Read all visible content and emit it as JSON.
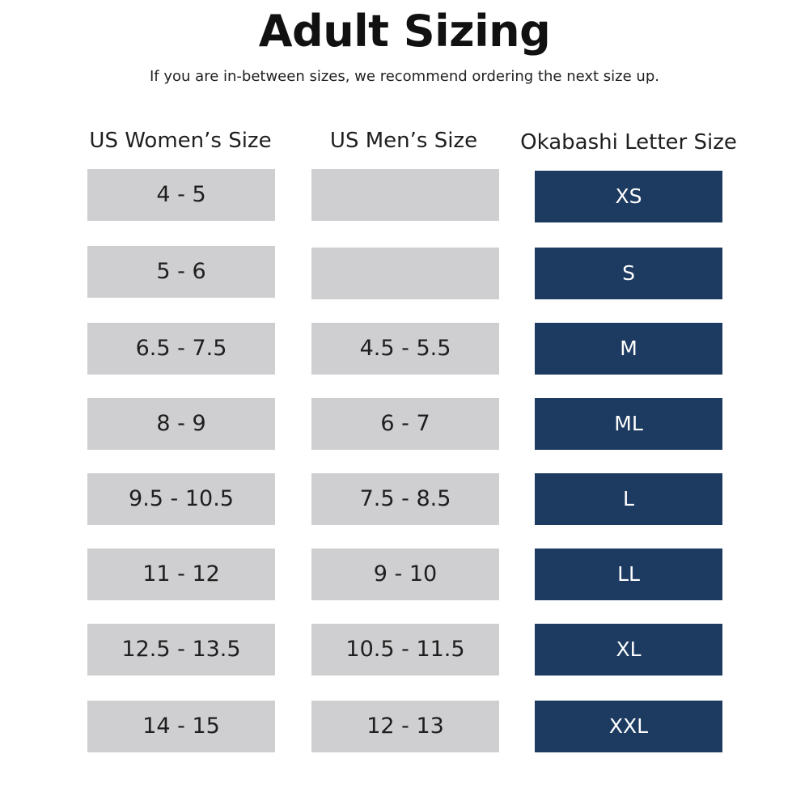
{
  "title": "Adult Sizing",
  "subtitle": "If you are in-between sizes, we recommend ordering the next size up.",
  "headers": {
    "women": "US Women’s Size",
    "men": "US Men’s Size",
    "letter": "Okabashi Letter Size"
  },
  "rows": [
    {
      "women": "4 - 5",
      "men": "",
      "letter": "XS"
    },
    {
      "women": "5 - 6",
      "men": "",
      "letter": "S"
    },
    {
      "women": "6.5 - 7.5",
      "men": "4.5 - 5.5",
      "letter": "M"
    },
    {
      "women": "8 - 9",
      "men": "6 - 7",
      "letter": "ML"
    },
    {
      "women": "9.5 - 10.5",
      "men": "7.5 - 8.5",
      "letter": "L"
    },
    {
      "women": "11 - 12",
      "men": "9 - 10",
      "letter": "LL"
    },
    {
      "women": "12.5 - 13.5",
      "men": "10.5 - 11.5",
      "letter": "XL"
    },
    {
      "women": "14 - 15",
      "men": "12 - 13",
      "letter": "XXL"
    }
  ],
  "colors": {
    "cell_gray": "#cfcfd1",
    "cell_navy": "#1d3a60"
  }
}
